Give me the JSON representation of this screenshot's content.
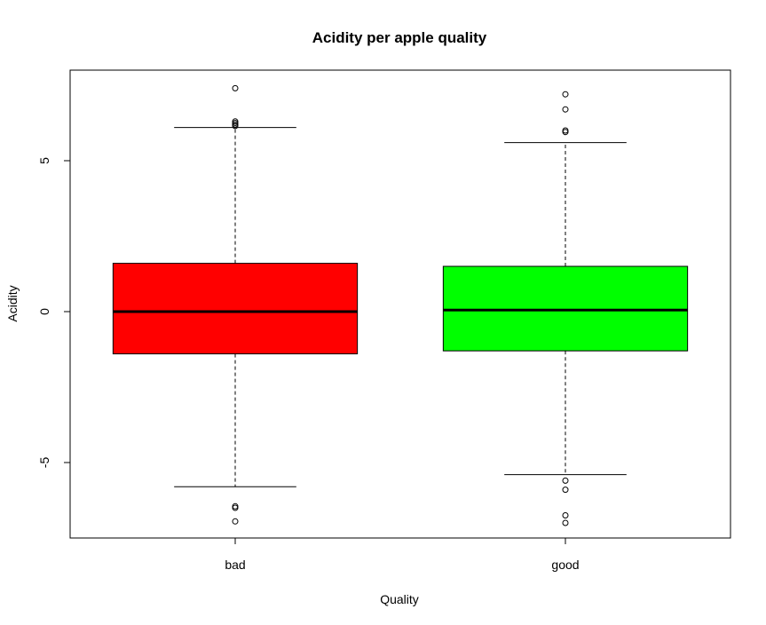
{
  "chart_data": {
    "type": "boxplot",
    "title": "Acidity per apple quality",
    "xlabel": "Quality",
    "ylabel": "Acidity",
    "ylim": [
      -7.5,
      8.0
    ],
    "y_ticks": [
      -5,
      0,
      5
    ],
    "categories": [
      "bad",
      "good"
    ],
    "boxes": [
      {
        "category": "bad",
        "color": "#ff0000",
        "whisker_low": -5.8,
        "q1": -1.4,
        "median": 0.0,
        "q3": 1.6,
        "whisker_high": 6.1,
        "outliers": [
          7.4,
          6.3,
          6.25,
          6.2,
          6.15,
          -6.45,
          -6.5,
          -6.95
        ]
      },
      {
        "category": "good",
        "color": "#00ff00",
        "whisker_low": -5.4,
        "q1": -1.3,
        "median": 0.05,
        "q3": 1.5,
        "whisker_high": 5.6,
        "outliers": [
          7.2,
          6.7,
          6.0,
          5.95,
          -5.6,
          -5.9,
          -6.75,
          -7.0
        ]
      }
    ],
    "grid": false,
    "legend": "none"
  }
}
